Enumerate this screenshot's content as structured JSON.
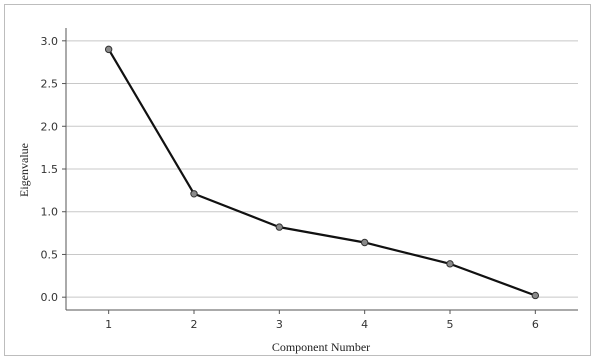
{
  "chart_data": {
    "type": "line",
    "title": "",
    "xlabel": "Component Number",
    "ylabel": "Eigenvalue",
    "categories": [
      "1",
      "2",
      "3",
      "4",
      "5",
      "6"
    ],
    "x": [
      1,
      2,
      3,
      4,
      5,
      6
    ],
    "series": [
      {
        "values": [
          2.9,
          1.21,
          0.82,
          0.64,
          0.39,
          0.02
        ]
      }
    ],
    "ylim": [
      -0.15,
      3.15
    ],
    "yticks": [
      "0.0",
      "0.5",
      "1.0",
      "1.5",
      "2.0",
      "2.5",
      "3.0"
    ],
    "grid": "horizontal",
    "legend": "none",
    "line_color": "#111111",
    "marker_color": "#8a8a8a"
  }
}
